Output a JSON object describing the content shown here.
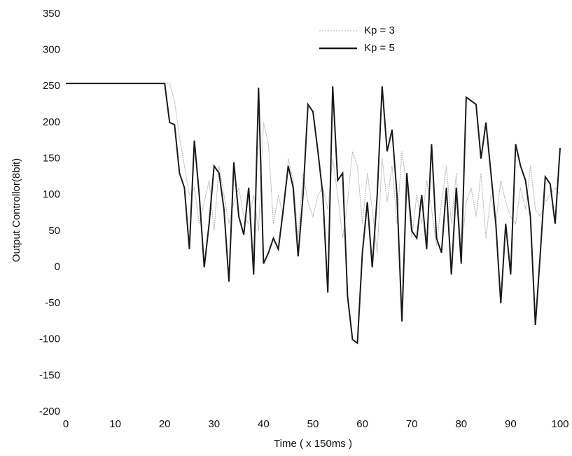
{
  "chart_data": {
    "type": "line",
    "x_label": "Time ( x 150ms )",
    "y_label": "Output Controllor(8bit)",
    "x": [
      0,
      1,
      2,
      3,
      4,
      5,
      6,
      7,
      8,
      9,
      10,
      11,
      12,
      13,
      14,
      15,
      16,
      17,
      18,
      19,
      20,
      21,
      22,
      23,
      24,
      25,
      26,
      27,
      28,
      29,
      30,
      31,
      32,
      33,
      34,
      35,
      36,
      37,
      38,
      39,
      40,
      41,
      42,
      43,
      44,
      45,
      46,
      47,
      48,
      49,
      50,
      51,
      52,
      53,
      54,
      55,
      56,
      57,
      58,
      59,
      60,
      61,
      62,
      63,
      64,
      65,
      66,
      67,
      68,
      69,
      70,
      71,
      72,
      73,
      74,
      75,
      76,
      77,
      78,
      79,
      80,
      81,
      82,
      83,
      84,
      85,
      86,
      87,
      88,
      89,
      90,
      91,
      92,
      93,
      94,
      95,
      96,
      97,
      98,
      99,
      100
    ],
    "series": [
      {
        "name": "Kp = 3",
        "color": "#b0b0b0",
        "dash": true,
        "values": [
          254,
          254,
          254,
          254,
          254,
          254,
          254,
          254,
          254,
          254,
          254,
          254,
          254,
          254,
          254,
          254,
          254,
          254,
          254,
          254,
          254,
          254,
          230,
          180,
          140,
          100,
          110,
          60,
          90,
          120,
          50,
          140,
          100,
          60,
          90,
          110,
          70,
          60,
          100,
          50,
          200,
          170,
          60,
          100,
          70,
          150,
          120,
          40,
          130,
          90,
          70,
          100,
          110,
          80,
          150,
          100,
          40,
          90,
          160,
          140,
          60,
          130,
          80,
          20,
          150,
          90,
          140,
          60,
          160,
          110,
          40,
          100,
          60,
          120,
          80,
          30,
          90,
          140,
          60,
          130,
          20,
          90,
          110,
          70,
          130,
          40,
          100,
          60,
          120,
          90,
          70,
          60,
          110,
          80,
          140,
          80,
          70,
          90,
          100,
          110,
          100
        ]
      },
      {
        "name": "Kp = 5",
        "color": "#1a1a1a",
        "dash": false,
        "values": [
          254,
          254,
          254,
          254,
          254,
          254,
          254,
          254,
          254,
          254,
          254,
          254,
          254,
          254,
          254,
          254,
          254,
          254,
          254,
          254,
          254,
          200,
          197,
          130,
          110,
          25,
          175,
          100,
          0,
          60,
          140,
          130,
          80,
          -20,
          145,
          70,
          45,
          110,
          -10,
          248,
          5,
          20,
          40,
          25,
          80,
          140,
          110,
          15,
          100,
          225,
          215,
          160,
          100,
          -35,
          250,
          120,
          130,
          -40,
          -100,
          -105,
          20,
          90,
          0,
          100,
          250,
          160,
          190,
          100,
          -75,
          130,
          50,
          40,
          100,
          25,
          170,
          40,
          20,
          110,
          -10,
          110,
          5,
          235,
          230,
          225,
          150,
          200,
          130,
          60,
          -50,
          60,
          -10,
          170,
          140,
          120,
          70,
          -80,
          20,
          125,
          115,
          60,
          165
        ]
      }
    ],
    "xlim": [
      0,
      100
    ],
    "xticks": [
      0,
      10,
      20,
      30,
      40,
      50,
      60,
      70,
      80,
      90,
      100
    ],
    "ylim": [
      -200,
      350
    ],
    "yticks": [
      -200,
      -150,
      -100,
      -50,
      0,
      50,
      100,
      150,
      200,
      250,
      300,
      350
    ],
    "grid": false,
    "legend": "top"
  }
}
